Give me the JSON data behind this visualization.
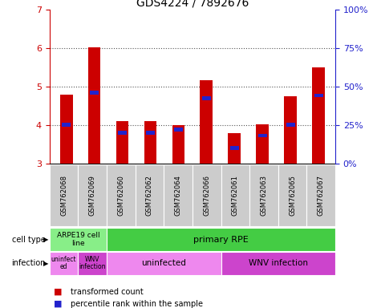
{
  "title": "GDS4224 / 7892676",
  "samples": [
    "GSM762068",
    "GSM762069",
    "GSM762060",
    "GSM762062",
    "GSM762064",
    "GSM762066",
    "GSM762061",
    "GSM762063",
    "GSM762065",
    "GSM762067"
  ],
  "transformed_counts": [
    4.78,
    6.02,
    4.1,
    4.1,
    4.0,
    5.15,
    3.78,
    4.02,
    4.75,
    5.5
  ],
  "percentile_ranks": [
    25,
    46,
    20,
    20,
    22,
    42,
    10,
    18,
    25,
    44
  ],
  "ylim": [
    3,
    7
  ],
  "y2lim": [
    0,
    100
  ],
  "yticks": [
    3,
    4,
    5,
    6,
    7
  ],
  "y2ticks": [
    0,
    25,
    50,
    75,
    100
  ],
  "y2ticklabels": [
    "0%",
    "25%",
    "50%",
    "75%",
    "100%"
  ],
  "bar_color": "#cc0000",
  "percentile_color": "#2222cc",
  "grid_color": "#555555",
  "cell_type_colors": {
    "ARPE19 cell line": "#88ee88",
    "primary RPE": "#44cc44"
  },
  "infection_colors": {
    "uninfected_light": "#ee88ee",
    "WNV_dark": "#cc44cc"
  },
  "legend_bar_color": "#cc0000",
  "legend_percentile_color": "#2222cc",
  "ylabel_left_color": "#cc0000",
  "ylabel_right_color": "#2222cc",
  "bar_width": 0.45,
  "blue_bar_width": 0.45,
  "sample_bg_color": "#cccccc",
  "fig_bg_color": "#ffffff"
}
